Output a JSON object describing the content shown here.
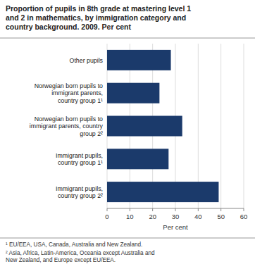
{
  "chart_data": {
    "type": "bar",
    "orientation": "horizontal",
    "title": "Proportion of pupils in 8th grade at mastering level 1\nand 2 in mathematics, by immigration category and\ncountry background. 2009. Per cent",
    "categories": [
      "Other pupils",
      "Norwegian born pupils to\nimmigrant parents,\ncountry group 1¹",
      "Norwegian born pupils to\nimmigrant parents, country\ngroup 2²",
      "Immigrant pupils,\ncountry group 1¹",
      "Immigrant pupils,\ncountry group 2²"
    ],
    "values": [
      28,
      23,
      33,
      27,
      49
    ],
    "color": "#1b3a6b",
    "xlabel": "Per cent",
    "xlim": [
      0,
      60
    ],
    "xticks": [
      0,
      10,
      20,
      30,
      40,
      50,
      60
    ],
    "grid": true,
    "annotations": [
      "¹ EU/EEA, USA, Canada, Australia and New Zealand.",
      "² Asia, Africa, Latin-America, Oceania except Australia and\nNew Zealand, and Europe except EU/EEA."
    ]
  }
}
